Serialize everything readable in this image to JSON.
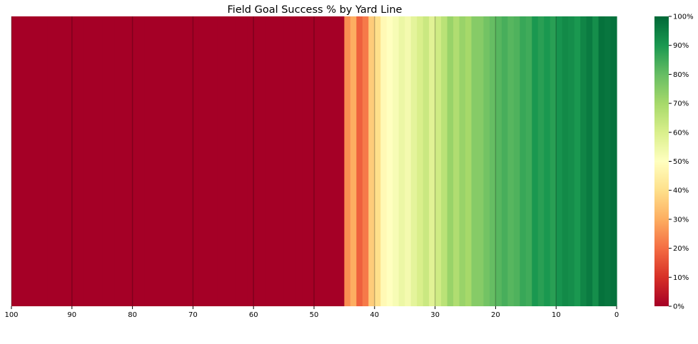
{
  "chart_data": {
    "type": "heatmap",
    "title": "Field Goal Success % by Yard Line",
    "xlabel": "",
    "ylabel": "",
    "x_ticks": [
      "100",
      "90",
      "80",
      "70",
      "60",
      "50",
      "40",
      "30",
      "20",
      "10",
      "0"
    ],
    "x_range": [
      100,
      0
    ],
    "yard_lines": [
      100,
      99,
      98,
      97,
      96,
      95,
      94,
      93,
      92,
      91,
      90,
      89,
      88,
      87,
      86,
      85,
      84,
      83,
      82,
      81,
      80,
      79,
      78,
      77,
      76,
      75,
      74,
      73,
      72,
      71,
      70,
      69,
      68,
      67,
      66,
      65,
      64,
      63,
      62,
      61,
      60,
      59,
      58,
      57,
      56,
      55,
      54,
      53,
      52,
      51,
      50,
      49,
      48,
      47,
      46,
      45,
      44,
      43,
      42,
      41,
      40,
      39,
      38,
      37,
      36,
      35,
      34,
      33,
      32,
      31,
      30,
      29,
      28,
      27,
      26,
      25,
      24,
      23,
      22,
      21,
      20,
      19,
      18,
      17,
      16,
      15,
      14,
      13,
      12,
      11,
      10,
      9,
      8,
      7,
      6,
      5,
      4,
      3,
      2,
      1
    ],
    "values": [
      0,
      0,
      0,
      0,
      0,
      0,
      0,
      0,
      0,
      0,
      0,
      0,
      0,
      0,
      0,
      0,
      0,
      0,
      0,
      0,
      0,
      0,
      0,
      0,
      0,
      0,
      0,
      0,
      0,
      0,
      0,
      0,
      0,
      0,
      0,
      0,
      0,
      0,
      0,
      0,
      0,
      0,
      0,
      0,
      0,
      0,
      0,
      0,
      0,
      0,
      0,
      0,
      0,
      0,
      0,
      25,
      30,
      18,
      22,
      36,
      40,
      48,
      50,
      52,
      55,
      53,
      57,
      60,
      63,
      58,
      62,
      66,
      72,
      68,
      72,
      70,
      75,
      75,
      78,
      80,
      82,
      84,
      82,
      83,
      86,
      85,
      90,
      88,
      90,
      88,
      91,
      93,
      92,
      90,
      94,
      96,
      92,
      98,
      97,
      98
    ],
    "colorbar": {
      "range": [
        0,
        100
      ],
      "ticks": [
        "0%",
        "10%",
        "20%",
        "30%",
        "40%",
        "50%",
        "60%",
        "70%",
        "80%",
        "90%",
        "100%"
      ],
      "colormap": "RdYlGn"
    },
    "gridlines_at": [
      100,
      90,
      80,
      70,
      60,
      50,
      40,
      30,
      20,
      10
    ],
    "grid": true
  }
}
